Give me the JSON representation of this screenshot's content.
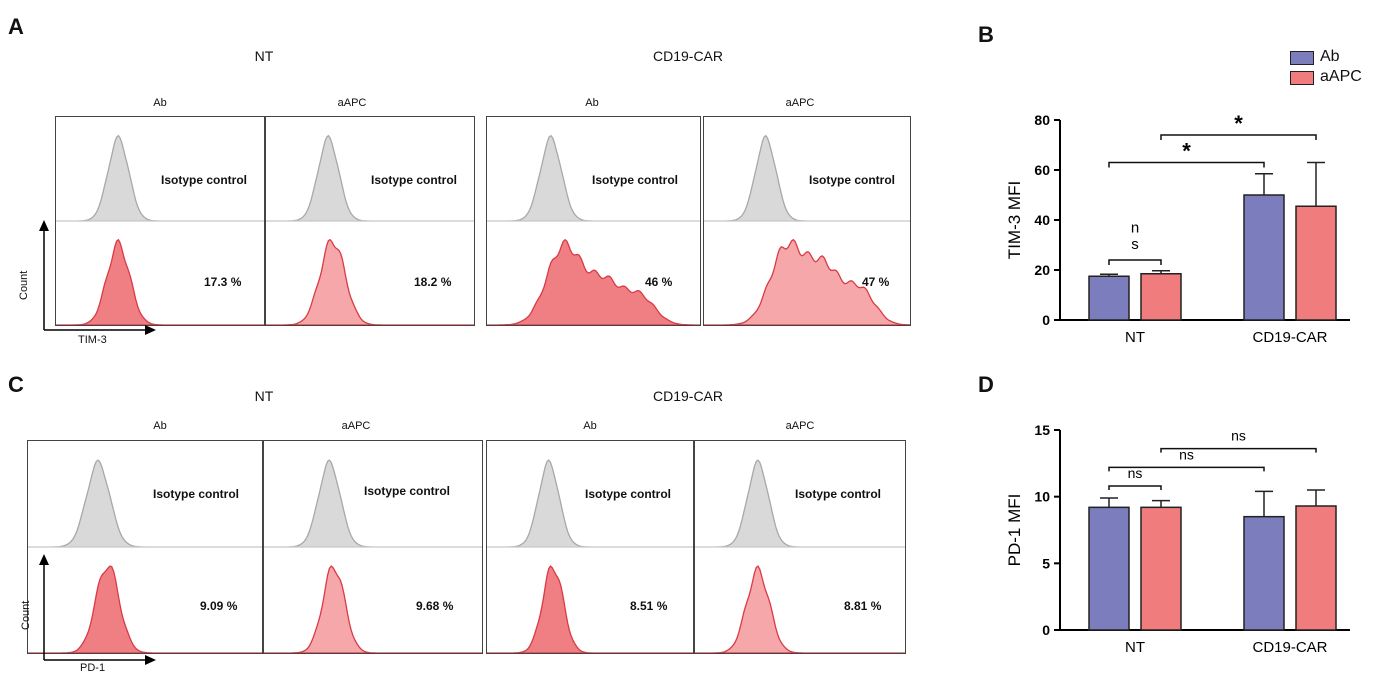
{
  "panel_labels": {
    "a": "A",
    "b": "B",
    "c": "C",
    "d": "D"
  },
  "flow_tim3": {
    "group_titles": [
      "NT",
      "CD19-CAR"
    ],
    "columns": [
      "Ab",
      "aAPC",
      "Ab",
      "aAPC"
    ],
    "isotype_label": "Isotype control",
    "percents": [
      "17.3 %",
      "18.2 %",
      "46 %",
      "47 %"
    ],
    "y_axis": "Count",
    "x_axis": "TIM-3"
  },
  "flow_pd1": {
    "group_titles": [
      "NT",
      "CD19-CAR"
    ],
    "columns": [
      "Ab",
      "aAPC",
      "Ab",
      "aAPC"
    ],
    "isotype_label": "Isotype control",
    "percents": [
      "9.09 %",
      "9.68 %",
      "8.51 %",
      "8.81 %"
    ],
    "y_axis": "Count",
    "x_axis": "PD-1"
  },
  "legend": [
    {
      "name": "Ab",
      "color": "#7b7dbd"
    },
    {
      "name": "aAPC",
      "color": "#f07c7e"
    }
  ],
  "chart_data": [
    {
      "type": "bar",
      "categories": [
        "NT",
        "CD19-CAR"
      ],
      "series": [
        {
          "name": "Ab",
          "values": [
            17.5,
            50
          ],
          "errors": [
            0.8,
            8.5
          ]
        },
        {
          "name": "aAPC",
          "values": [
            18.5,
            45.5
          ],
          "errors": [
            1.2,
            17.5
          ]
        }
      ],
      "xlabel": "",
      "ylabel": "TIM-3 MFI",
      "ylim": [
        0,
        80
      ],
      "yticks": [
        "0",
        "20",
        "40",
        "60",
        "80"
      ],
      "annotations": [
        {
          "text": "n",
          "between": "NT Ab – NT aAPC"
        },
        {
          "text": "s",
          "between": "NT Ab – NT aAPC"
        },
        {
          "text": "*",
          "between": "NT Ab – CD19-CAR Ab"
        },
        {
          "text": "*",
          "between": "NT aAPC – CD19-CAR aAPC"
        }
      ]
    },
    {
      "type": "bar",
      "categories": [
        "NT",
        "CD19-CAR"
      ],
      "series": [
        {
          "name": "Ab",
          "values": [
            9.2,
            8.5
          ],
          "errors": [
            0.7,
            1.9
          ]
        },
        {
          "name": "aAPC",
          "values": [
            9.2,
            9.3
          ],
          "errors": [
            0.5,
            1.2
          ]
        }
      ],
      "xlabel": "",
      "ylabel": "PD-1 MFI",
      "ylim": [
        0,
        15
      ],
      "yticks": [
        "0",
        "5",
        "10",
        "15"
      ],
      "annotations": [
        {
          "text": "ns",
          "between": "NT Ab – NT aAPC"
        },
        {
          "text": "ns",
          "between": "NT Ab – CD19-CAR Ab"
        },
        {
          "text": "ns",
          "between": "NT aAPC – CD19-CAR aAPC"
        }
      ]
    }
  ]
}
